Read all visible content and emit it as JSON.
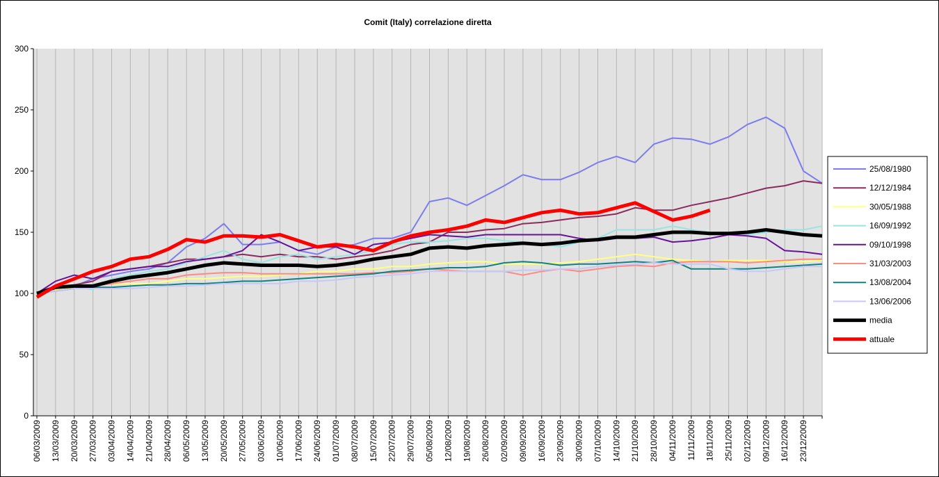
{
  "chart_data": {
    "type": "line",
    "title": "Comit (Italy) correlazione diretta",
    "categories": [
      "06/03/2009",
      "13/03/2009",
      "20/03/2009",
      "27/03/2009",
      "03/04/2009",
      "14/04/2009",
      "21/04/2009",
      "28/04/2009",
      "06/05/2009",
      "13/05/2009",
      "20/05/2009",
      "27/05/2009",
      "03/06/2009",
      "10/06/2009",
      "17/06/2009",
      "24/06/2009",
      "01/07/2009",
      "08/07/2009",
      "15/07/2009",
      "22/07/2009",
      "29/07/2009",
      "05/08/2009",
      "12/08/2009",
      "19/08/2009",
      "26/08/2009",
      "02/09/2009",
      "09/09/2009",
      "16/09/2009",
      "23/09/2009",
      "30/09/2009",
      "07/10/2009",
      "14/10/2009",
      "21/10/2009",
      "28/10/2009",
      "04/11/2009",
      "11/11/2009",
      "18/11/2009",
      "25/11/2009",
      "02/12/2009",
      "09/12/2009",
      "16/12/2009",
      "23/12/2009",
      null
    ],
    "ylim": [
      0,
      300
    ],
    "yticks": [
      0,
      50,
      100,
      150,
      200,
      250,
      300
    ],
    "grid": "x",
    "legend": "right",
    "series": [
      {
        "name": "25/08/1980",
        "color": "#7b7bf2",
        "width": 2,
        "values": [
          100,
          104,
          106,
          112,
          115,
          118,
          120,
          125,
          138,
          145,
          157,
          140,
          140,
          142,
          135,
          132,
          138,
          140,
          145,
          145,
          150,
          175,
          178,
          172,
          180,
          188,
          197,
          193,
          193,
          199,
          207,
          212,
          207,
          222,
          227,
          226,
          222,
          228,
          238,
          244,
          235,
          200,
          190
        ]
      },
      {
        "name": "12/12/1984",
        "color": "#8b2a5c",
        "width": 2,
        "values": [
          100,
          105,
          107,
          110,
          118,
          120,
          122,
          125,
          128,
          128,
          130,
          132,
          130,
          132,
          130,
          130,
          128,
          130,
          132,
          135,
          140,
          142,
          150,
          150,
          152,
          153,
          157,
          158,
          160,
          162,
          163,
          165,
          170,
          168,
          168,
          172,
          175,
          178,
          182,
          186,
          188,
          192,
          190
        ]
      },
      {
        "name": "30/05/1988",
        "color": "#ffff80",
        "width": 2,
        "values": [
          100,
          103,
          105,
          106,
          108,
          108,
          108,
          110,
          112,
          112,
          113,
          114,
          114,
          115,
          116,
          118,
          118,
          120,
          120,
          122,
          122,
          124,
          125,
          126,
          126,
          124,
          124,
          124,
          125,
          126,
          128,
          130,
          132,
          130,
          128,
          127,
          126,
          127,
          127,
          127,
          126,
          126,
          127
        ]
      },
      {
        "name": "16/09/1992",
        "color": "#99e3e3",
        "width": 2,
        "values": [
          100,
          104,
          106,
          103,
          112,
          115,
          118,
          120,
          125,
          130,
          135,
          128,
          125,
          130,
          132,
          128,
          130,
          132,
          135,
          140,
          142,
          142,
          143,
          145,
          145,
          143,
          142,
          140,
          138,
          142,
          145,
          152,
          152,
          152,
          155,
          152,
          150,
          150,
          148,
          150,
          152,
          152,
          155
        ]
      },
      {
        "name": "09/10/1998",
        "color": "#66129a",
        "width": 2,
        "values": [
          100,
          110,
          115,
          112,
          118,
          120,
          122,
          122,
          126,
          128,
          130,
          135,
          148,
          142,
          135,
          138,
          138,
          132,
          140,
          142,
          145,
          148,
          147,
          146,
          148,
          148,
          148,
          148,
          148,
          145,
          143,
          145,
          145,
          146,
          142,
          143,
          145,
          148,
          147,
          145,
          135,
          134,
          132
        ]
      },
      {
        "name": "31/03/2003",
        "color": "#ff8a80",
        "width": 2,
        "values": [
          100,
          102,
          104,
          106,
          108,
          110,
          112,
          112,
          115,
          116,
          117,
          117,
          116,
          116,
          116,
          116,
          116,
          116,
          117,
          117,
          118,
          120,
          119,
          118,
          118,
          118,
          115,
          118,
          120,
          118,
          120,
          122,
          123,
          122,
          125,
          126,
          126,
          126,
          125,
          126,
          127,
          128,
          128
        ]
      },
      {
        "name": "13/08/2004",
        "color": "#118080",
        "width": 2,
        "values": [
          100,
          102,
          104,
          105,
          105,
          106,
          107,
          107,
          108,
          108,
          109,
          110,
          110,
          111,
          112,
          113,
          114,
          115,
          116,
          118,
          119,
          120,
          121,
          121,
          122,
          125,
          126,
          125,
          123,
          124,
          124,
          125,
          126,
          125,
          127,
          120,
          120,
          120,
          120,
          121,
          122,
          123,
          124
        ]
      },
      {
        "name": "13/06/2006",
        "color": "#c8c8f8",
        "width": 2,
        "values": [
          100,
          102,
          104,
          104,
          104,
          104,
          105,
          106,
          106,
          107,
          108,
          108,
          108,
          108,
          110,
          110,
          111,
          113,
          114,
          115,
          116,
          118,
          118,
          118,
          118,
          118,
          119,
          119,
          120,
          120,
          122,
          123,
          124,
          125,
          124,
          124,
          124,
          120,
          118,
          118,
          120,
          122,
          122
        ]
      },
      {
        "name": "media",
        "color": "#000000",
        "width": 5,
        "values": [
          100,
          105,
          106,
          106,
          110,
          113,
          115,
          117,
          120,
          123,
          125,
          124,
          123,
          123,
          123,
          122,
          123,
          125,
          128,
          130,
          132,
          137,
          138,
          137,
          139,
          140,
          141,
          140,
          141,
          143,
          144,
          146,
          146,
          148,
          150,
          150,
          149,
          149,
          150,
          152,
          150,
          148,
          147
        ]
      },
      {
        "name": "attuale",
        "color": "#ff0000",
        "width": 5,
        "values": [
          97,
          106,
          112,
          118,
          122,
          128,
          130,
          136,
          144,
          142,
          147,
          147,
          146,
          148,
          143,
          138,
          140,
          138,
          135,
          142,
          147,
          150,
          152,
          155,
          160,
          158,
          162,
          166,
          168,
          165,
          166,
          170,
          174,
          167,
          160,
          163,
          168,
          null,
          null,
          null,
          null,
          null,
          null
        ]
      }
    ]
  }
}
